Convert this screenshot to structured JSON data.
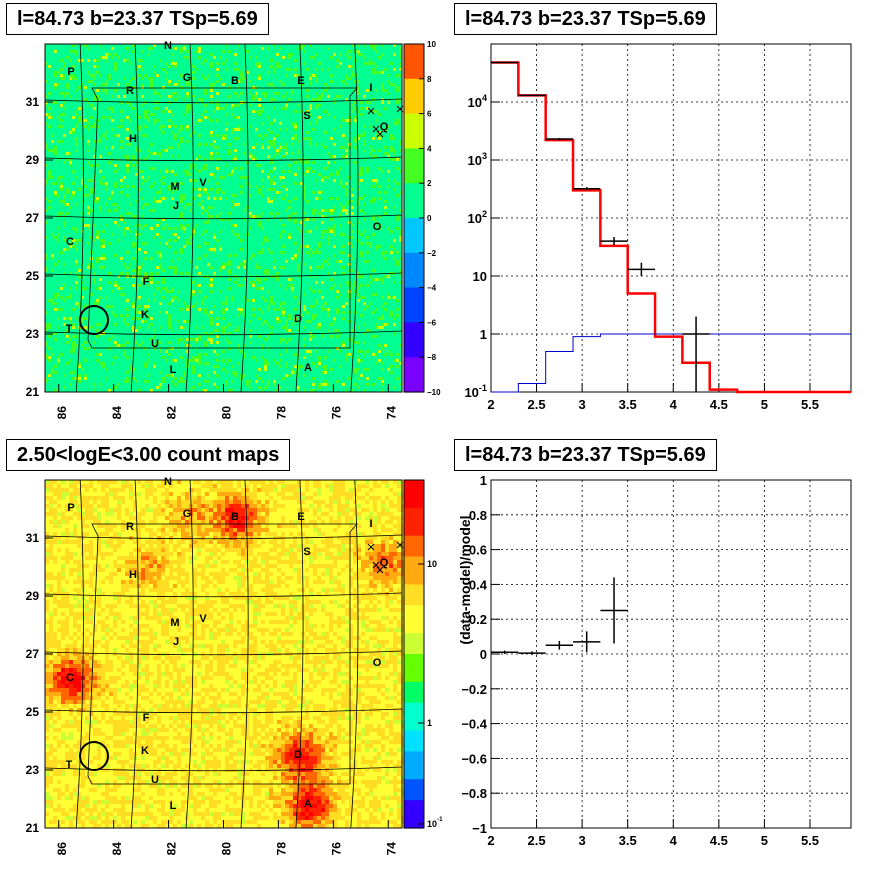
{
  "titles": {
    "top_left": "l=84.73 b=23.37 TSp=5.69",
    "top_right": "l=84.73 b=23.37 TSp=5.69",
    "bottom_left": "2.50<logE<3.00 count maps",
    "bottom_right": "l=84.73 b=23.37 TSp=5.69"
  },
  "colors": {
    "model": "#ff0000",
    "component": "#0000cc",
    "data": "#000000"
  },
  "chart_data": [
    {
      "type": "heatmap",
      "title": "l=84.73 b=23.37 TSp=5.69",
      "x_ticks": [
        "86",
        "84",
        "82",
        "80",
        "78",
        "76",
        "74"
      ],
      "y_ticks": [
        "21",
        "23",
        "25",
        "27",
        "29",
        "31"
      ],
      "xlim": [
        86.5,
        73.5
      ],
      "ylim": [
        21,
        33
      ],
      "colorbar_ticks": [
        "10",
        "8",
        "6",
        "4",
        "2",
        "0",
        "−2",
        "−4",
        "−6",
        "−8",
        "−10"
      ],
      "colorbar_range": [
        -10,
        10
      ],
      "sources": [
        "N",
        "P",
        "G",
        "B",
        "E",
        "I",
        "R",
        "S",
        "Q",
        "H",
        "M",
        "V",
        "J",
        "O",
        "C",
        "F",
        "K",
        "T",
        "D",
        "U",
        "L",
        "A"
      ]
    },
    {
      "type": "line",
      "title": "l=84.73 b=23.37 TSp=5.69",
      "x_ticks": [
        "2",
        "2.5",
        "3",
        "3.5",
        "4",
        "4.5",
        "5",
        "5.5"
      ],
      "xlim": [
        2.0,
        5.95
      ],
      "y_scale": "log",
      "ylim": [
        0.1,
        100000
      ],
      "y_ticks": [
        "10^-1",
        "1",
        "10",
        "10^2",
        "10^3",
        "10^4"
      ],
      "grid": true,
      "series": [
        {
          "edges": [
            2.0,
            2.3,
            2.6,
            2.9,
            3.2,
            3.5,
            3.8,
            4.1,
            4.4,
            4.7,
            5.0,
            5.3,
            5.6,
            5.95
          ],
          "values": [
            48000,
            13000,
            2200,
            300,
            33,
            5,
            0.9,
            0.32,
            0.11,
            0.1,
            0.1,
            0.1,
            0.1
          ]
        },
        {
          "edges": [
            2.0,
            2.3,
            2.6,
            2.9,
            3.2,
            3.5,
            3.8,
            4.1,
            4.4,
            4.7,
            5.0,
            5.3,
            5.6,
            5.95
          ],
          "values": [
            0.1,
            0.14,
            0.5,
            0.9,
            1.0,
            1.0,
            1.0,
            1.0,
            1.0,
            1.0,
            1.0,
            1.0,
            1.0
          ]
        }
      ],
      "points": [
        {
          "x": 2.15,
          "y": 48000,
          "xerr": 0.15,
          "ylo": 47000,
          "yhi": 49000
        },
        {
          "x": 2.45,
          "y": 13000,
          "xerr": 0.15,
          "ylo": 12700,
          "yhi": 13300
        },
        {
          "x": 2.75,
          "y": 2300,
          "xerr": 0.15,
          "ylo": 2200,
          "yhi": 2400
        },
        {
          "x": 3.05,
          "y": 320,
          "xerr": 0.15,
          "ylo": 300,
          "yhi": 340
        },
        {
          "x": 3.35,
          "y": 40,
          "xerr": 0.15,
          "ylo": 34,
          "yhi": 47
        },
        {
          "x": 3.65,
          "y": 13,
          "xerr": 0.15,
          "ylo": 10,
          "yhi": 17
        },
        {
          "x": 4.25,
          "y": 1,
          "xerr": 0.15,
          "ylo": 0.1,
          "yhi": 2
        }
      ]
    },
    {
      "type": "heatmap",
      "title": "2.50<logE<3.00 count maps",
      "x_ticks": [
        "86",
        "84",
        "82",
        "80",
        "78",
        "76",
        "74"
      ],
      "y_ticks": [
        "21",
        "23",
        "25",
        "27",
        "29",
        "31"
      ],
      "xlim": [
        86.5,
        73.5
      ],
      "ylim": [
        21,
        33
      ],
      "colorbar_ticks": [
        "10",
        "1",
        "10^-1"
      ],
      "colorbar_scale": "log",
      "sources": [
        "N",
        "P",
        "G",
        "B",
        "E",
        "I",
        "R",
        "S",
        "Q",
        "H",
        "M",
        "V",
        "J",
        "O",
        "C",
        "F",
        "K",
        "T",
        "D",
        "U",
        "L",
        "A"
      ]
    },
    {
      "type": "scatter",
      "title": "l=84.73 b=23.37 TSp=5.69",
      "ylabel": "(data-model)/model",
      "x_ticks": [
        "2",
        "2.5",
        "3",
        "3.5",
        "4",
        "4.5",
        "5",
        "5.5"
      ],
      "xlim": [
        2.0,
        5.95
      ],
      "ylim": [
        -1,
        1
      ],
      "y_ticks": [
        "1",
        "0.8",
        "0.6",
        "0.4",
        "0.2",
        "0",
        "−0.2",
        "−0.4",
        "−0.6",
        "−0.8",
        "−1"
      ],
      "grid": true,
      "points": [
        {
          "x": 2.15,
          "y": 0.01,
          "xerr": 0.15,
          "yerr": 0.01
        },
        {
          "x": 2.45,
          "y": 0.005,
          "xerr": 0.15,
          "yerr": 0.01
        },
        {
          "x": 2.75,
          "y": 0.05,
          "xerr": 0.15,
          "yerr": 0.025
        },
        {
          "x": 3.05,
          "y": 0.07,
          "xerr": 0.15,
          "yerr": 0.06
        },
        {
          "x": 3.35,
          "y": 0.25,
          "xerr": 0.15,
          "yerr": 0.19
        }
      ]
    }
  ]
}
